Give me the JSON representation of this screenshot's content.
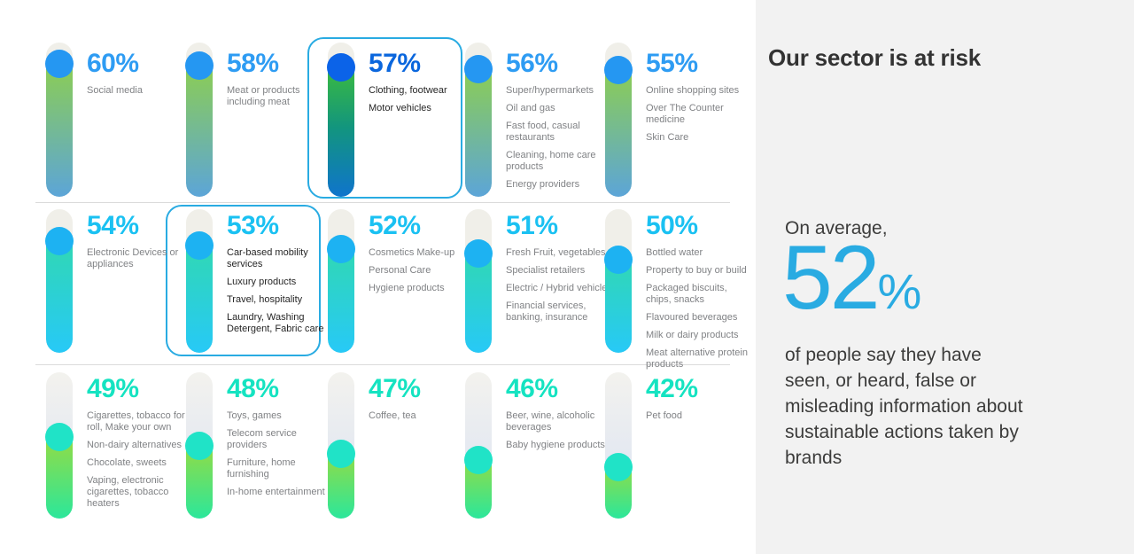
{
  "right_panel": {
    "title": "Our sector is at risk",
    "stat_intro": "On average,",
    "stat_value": "52",
    "stat_unit": "%",
    "stat_description": "of people say they have seen, or heard, false or misleading information about sustainable actions taken by brands"
  },
  "colors": {
    "highlight_border": "#29ABE2",
    "panel_background": "#F2F2F2",
    "divider": "#DBDBDB",
    "category_text": "#808285",
    "category_text_highlighted": "#262626",
    "stat_blue": "#29ABE2",
    "body_text": "#3C3C3B"
  },
  "chart_data": {
    "type": "bar",
    "title": "",
    "unit": "%",
    "ylim": [
      0,
      100
    ],
    "legend": "none",
    "grid": "off",
    "layout": "3 rows x 5 columns of vertical thermometer pills, highest value top-left",
    "palettes": {
      "row1": {
        "value": "#2E9CF3",
        "circle": "#2597F2",
        "fill": [
          "#8FD04A",
          "#5CA5D8"
        ],
        "track": [
          "#F0EFE9",
          "#F0EFE9"
        ]
      },
      "highlight": {
        "value": "#0A66DD",
        "circle": "#0B63E8",
        "fill": [
          "#41C036",
          "#12957E",
          "#0F74CC"
        ],
        "track": [
          "#F0EFE9",
          "#F0EFE9"
        ]
      },
      "row2": {
        "value": "#1AC1F2",
        "circle": "#1DB2F2",
        "fill": [
          "#31D9AE",
          "#27C9F7"
        ],
        "track": [
          "#F0EFE9",
          "#F0EFE9"
        ]
      },
      "row3": {
        "value": "#15E3C1",
        "circle": "#20E3C7",
        "fill": [
          "#9FDA3A",
          "#2BE79B"
        ],
        "track": [
          "#F3F2EE",
          "#D9E2F4"
        ]
      }
    },
    "items": [
      {
        "value": 60,
        "categories": [
          "Social media"
        ],
        "highlighted": false,
        "style": "row1",
        "fill_top": 0.14
      },
      {
        "value": 58,
        "categories": [
          "Meat or products including meat"
        ],
        "highlighted": false,
        "style": "row1",
        "fill_top": 0.15
      },
      {
        "value": 57,
        "categories": [
          "Clothing, footwear",
          "Motor vehicles"
        ],
        "highlighted": true,
        "style": "highlight",
        "fill_top": 0.16
      },
      {
        "value": 56,
        "categories": [
          "Super/hypermarkets",
          "Oil and gas",
          "Fast food, casual restaurants",
          "Cleaning, home care products",
          "Energy providers"
        ],
        "highlighted": false,
        "style": "row1",
        "fill_top": 0.17
      },
      {
        "value": 55,
        "categories": [
          "Online shopping sites",
          "Over The Counter medicine",
          "Skin Care"
        ],
        "highlighted": false,
        "style": "row1",
        "fill_top": 0.18
      },
      {
        "value": 54,
        "categories": [
          "Electronic Devices or appliances"
        ],
        "highlighted": false,
        "style": "row2",
        "fill_top": 0.22
      },
      {
        "value": 53,
        "categories": [
          "Car-based mobility services",
          "Luxury products",
          "Travel, hospitality",
          "Laundry, Washing Detergent, Fabric care"
        ],
        "highlighted": true,
        "style": "row2",
        "fill_top": 0.25
      },
      {
        "value": 52,
        "categories": [
          "Cosmetics Make-up",
          "Personal Care",
          "Hygiene products"
        ],
        "highlighted": false,
        "style": "row2",
        "fill_top": 0.28
      },
      {
        "value": 51,
        "categories": [
          "Fresh Fruit, vegetables",
          "Specialist retailers",
          "Electric / Hybrid vehicles",
          "Financial services, banking, insurance"
        ],
        "highlighted": false,
        "style": "row2",
        "fill_top": 0.31
      },
      {
        "value": 50,
        "categories": [
          "Bottled water",
          "Property to buy or build",
          "Packaged biscuits, chips, snacks",
          "Flavoured beverages",
          "Milk or dairy products",
          "Meat alternative protein products"
        ],
        "highlighted": false,
        "style": "row2",
        "fill_top": 0.35
      },
      {
        "value": 49,
        "categories": [
          "Cigarettes, tobacco for roll, Make your own",
          "Non-dairy alternatives",
          "Chocolate, sweets",
          "Vaping, electronic cigarettes, tobacco heaters"
        ],
        "highlighted": false,
        "style": "row3",
        "fill_top": 0.44
      },
      {
        "value": 48,
        "categories": [
          "Toys, games",
          "Telecom service providers",
          "Furniture, home furnishing",
          "In-home entertainment"
        ],
        "highlighted": false,
        "style": "row3",
        "fill_top": 0.5
      },
      {
        "value": 47,
        "categories": [
          "Coffee, tea"
        ],
        "highlighted": false,
        "style": "row3",
        "fill_top": 0.56
      },
      {
        "value": 46,
        "categories": [
          "Beer, wine, alcoholic beverages",
          "Baby hygiene products"
        ],
        "highlighted": false,
        "style": "row3",
        "fill_top": 0.6
      },
      {
        "value": 42,
        "categories": [
          "Pet food"
        ],
        "highlighted": false,
        "style": "row3",
        "fill_top": 0.65
      }
    ]
  }
}
